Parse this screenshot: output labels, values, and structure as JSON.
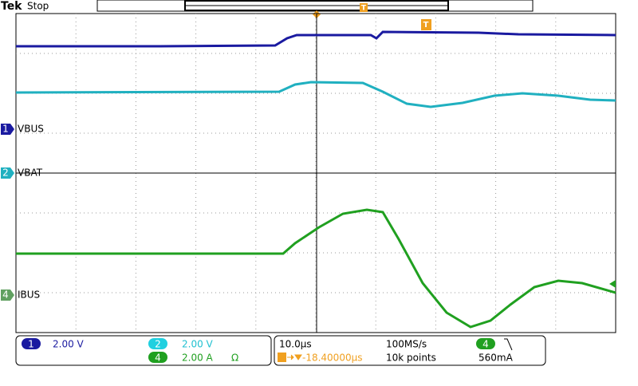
{
  "header": {
    "brand": "Tek",
    "status": "Stop",
    "trigger_marker": "T"
  },
  "channels": [
    {
      "number": "1",
      "label": "VBUS",
      "scale": "2.00 V"
    },
    {
      "number": "2",
      "label": "VBAT",
      "scale": "2.00 V"
    },
    {
      "number": "4",
      "label": "IBUS",
      "scale": "2.00 A",
      "impedance": "Ω"
    }
  ],
  "timebase": {
    "scale": "10.0µs",
    "sample_rate": "100MS/s",
    "trigger_position": "-18.40000µs",
    "record_length": "10k points"
  },
  "trigger": {
    "source": "4",
    "level": "560mA"
  }
}
